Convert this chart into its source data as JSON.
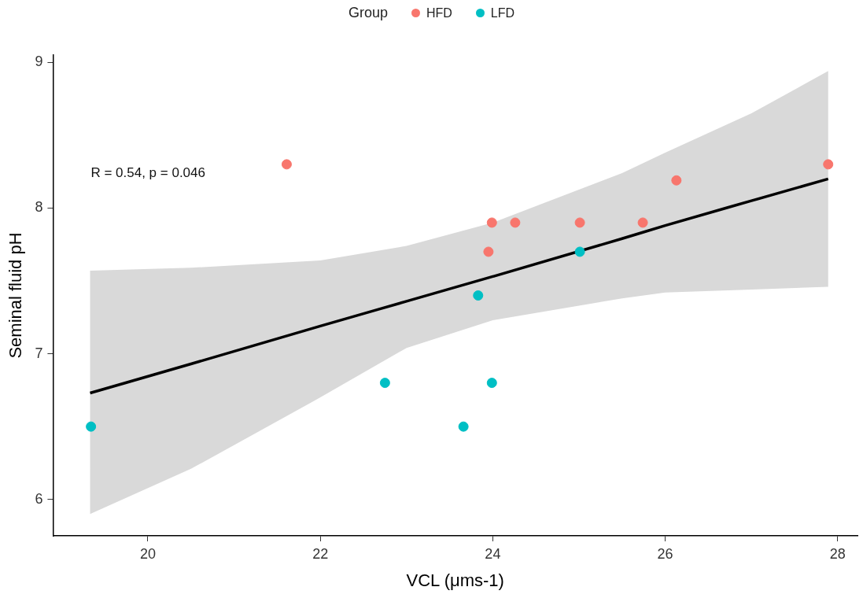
{
  "chart_data": {
    "type": "scatter",
    "xlabel": "VCL (μms-1)",
    "ylabel": "Seminal fluid pH",
    "legend_title": "Group",
    "legend": "top",
    "grid": false,
    "xlim": [
      18.9,
      28.23
    ],
    "xticks": [
      20,
      22,
      24,
      26,
      28
    ],
    "ylim": [
      5.75,
      9.05
    ],
    "yticks": [
      6,
      7,
      8,
      9
    ],
    "annotations": [
      "R = 0.54, p = 0.046"
    ],
    "series": [
      {
        "name": "HFD",
        "color": "#f8766d",
        "marker": "circle",
        "x": [
          21.61,
          23.99,
          24.26,
          23.95,
          25.01,
          25.74,
          26.13,
          27.89
        ],
        "values": [
          8.3,
          7.9,
          7.9,
          7.7,
          7.9,
          7.9,
          8.19,
          8.3
        ]
      },
      {
        "name": "LFD",
        "color": "#00bfc4",
        "marker": "circle",
        "x": [
          19.34,
          22.75,
          23.66,
          23.99,
          23.83,
          25.01
        ],
        "values": [
          6.5,
          6.8,
          6.5,
          6.8,
          7.4,
          7.7
        ]
      },
      {
        "type": "line",
        "color": "#000000",
        "x": [
          19.33,
          20.5,
          22,
          23,
          24,
          25.5,
          26,
          27,
          27.89
        ],
        "values": [
          6.73,
          6.93,
          7.19,
          7.36,
          7.53,
          7.79,
          7.88,
          8.05,
          8.2
        ],
        "lower": [
          5.9,
          6.21,
          6.7,
          7.04,
          7.23,
          7.38,
          7.42,
          7.44,
          7.46
        ],
        "upper": [
          7.57,
          7.59,
          7.64,
          7.74,
          7.9,
          8.24,
          8.38,
          8.65,
          8.94
        ]
      }
    ]
  }
}
